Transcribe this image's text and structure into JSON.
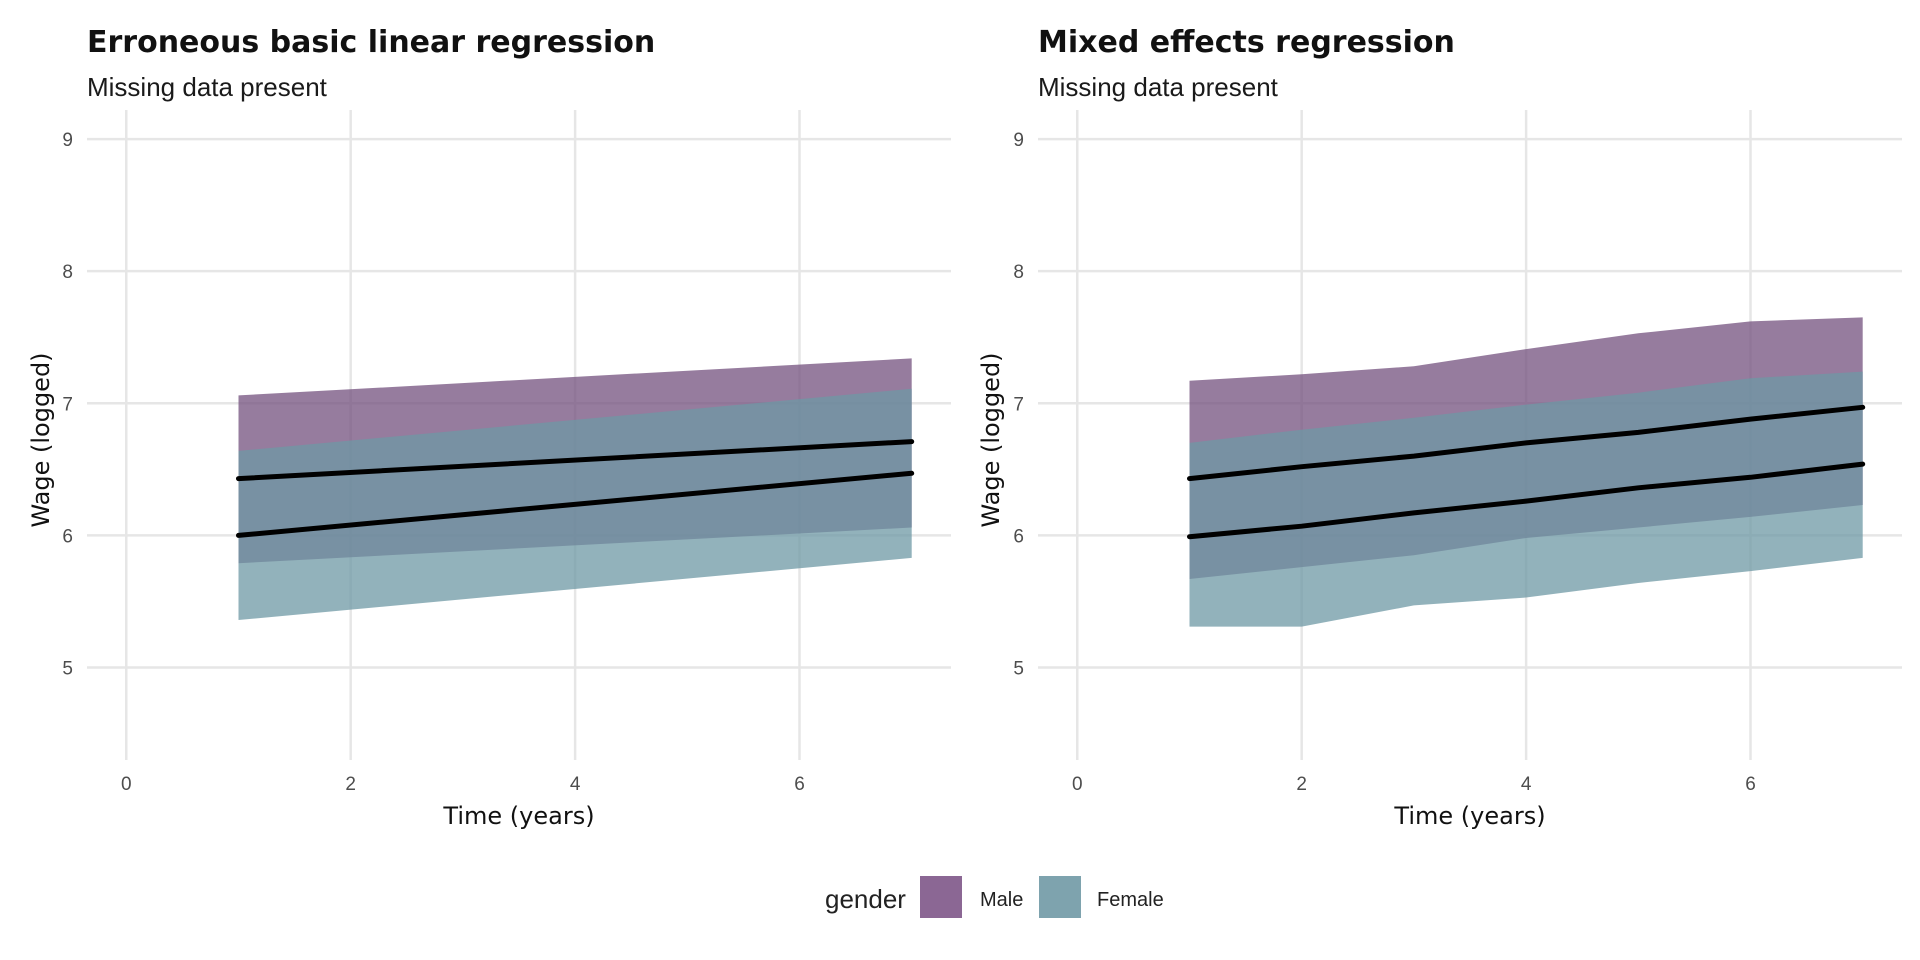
{
  "chart_data": [
    {
      "type": "area",
      "title": "Erroneous basic linear regression",
      "subtitle": "Missing data present",
      "xlabel": "Time (years)",
      "ylabel": "Wage (logged)",
      "xlim": [
        -0.35,
        7.35
      ],
      "ylim": [
        4.3,
        9.22
      ],
      "x_ticks": [
        0,
        2,
        4,
        6
      ],
      "y_ticks": [
        5,
        6,
        7,
        8,
        9
      ],
      "grid": true,
      "series": [
        {
          "name": "Male",
          "x": [
            1,
            7
          ],
          "lower": [
            5.79,
            6.06
          ],
          "upper": [
            7.06,
            7.34
          ],
          "fit": [
            6.43,
            6.71
          ]
        },
        {
          "name": "Female",
          "x": [
            1,
            7
          ],
          "lower": [
            5.36,
            5.83
          ],
          "upper": [
            6.64,
            7.11
          ],
          "fit": [
            6.0,
            6.47
          ]
        }
      ]
    },
    {
      "type": "area",
      "title": "Mixed effects regression",
      "subtitle": "Missing data present",
      "xlabel": "Time (years)",
      "ylabel": "Wage (logged)",
      "xlim": [
        -0.35,
        7.35
      ],
      "ylim": [
        4.3,
        9.22
      ],
      "x_ticks": [
        0,
        2,
        4,
        6
      ],
      "y_ticks": [
        5,
        6,
        7,
        8,
        9
      ],
      "grid": true,
      "series": [
        {
          "name": "Male",
          "x": [
            1,
            2,
            3,
            4,
            5,
            6,
            7
          ],
          "lower": [
            5.67,
            5.76,
            5.85,
            5.98,
            6.06,
            6.14,
            6.23
          ],
          "upper": [
            7.17,
            7.22,
            7.28,
            7.41,
            7.53,
            7.62,
            7.65
          ],
          "fit": [
            6.43,
            6.52,
            6.6,
            6.7,
            6.78,
            6.88,
            6.97
          ]
        },
        {
          "name": "Female",
          "x": [
            1,
            2,
            3,
            4,
            5,
            6,
            7
          ],
          "lower": [
            5.31,
            5.31,
            5.47,
            5.53,
            5.64,
            5.73,
            5.83
          ],
          "upper": [
            6.7,
            6.8,
            6.89,
            6.99,
            7.08,
            7.19,
            7.24
          ],
          "fit": [
            5.99,
            6.07,
            6.17,
            6.26,
            6.36,
            6.44,
            6.54
          ]
        }
      ]
    }
  ],
  "legend": {
    "title": "gender",
    "placement": "bottom",
    "items": [
      {
        "label": "Male",
        "color": "#8b6794"
      },
      {
        "label": "Female",
        "color": "#7ea3ae"
      }
    ]
  },
  "colors": {
    "Male": "#73507e",
    "Female": "#6d98a4",
    "fit_line": "#000000",
    "grid": "#e6e6e6"
  }
}
